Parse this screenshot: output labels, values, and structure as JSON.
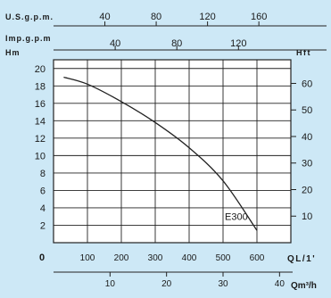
{
  "chart_data": {
    "type": "line",
    "title": "",
    "top_axis_1": {
      "label": "U.S.g.p.m.",
      "ticks": [
        40,
        80,
        120,
        160
      ]
    },
    "top_axis_2": {
      "label": "Imp.g.p.m",
      "ticks": [
        40,
        80,
        120
      ]
    },
    "left_axis": {
      "label": "Hm",
      "ticks": [
        2,
        4,
        6,
        8,
        10,
        12,
        14,
        16,
        18,
        20
      ],
      "ylim": [
        0,
        21
      ]
    },
    "right_axis": {
      "label": "Hft",
      "ticks": [
        10,
        20,
        30,
        40,
        50,
        60
      ]
    },
    "bottom_axis_1": {
      "label": "QL/1'",
      "zero_label": "0",
      "ticks": [
        100,
        200,
        300,
        400,
        500,
        600
      ],
      "xlim": [
        0,
        700
      ]
    },
    "bottom_axis_2": {
      "label": "Qm³/h",
      "ticks": [
        10,
        20,
        30,
        40
      ]
    },
    "grid": true,
    "series": [
      {
        "name": "E300",
        "x": [
          30,
          100,
          200,
          300,
          400,
          500,
          600
        ],
        "y": [
          19.0,
          18.2,
          16.2,
          13.8,
          10.9,
          7.1,
          1.4
        ]
      }
    ]
  }
}
